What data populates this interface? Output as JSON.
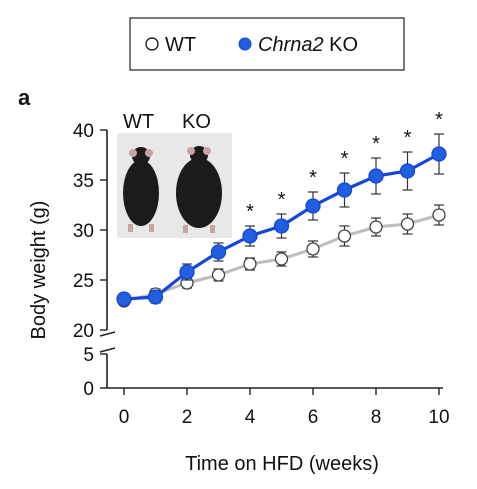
{
  "panel_label": "a",
  "legend": {
    "items": [
      {
        "label": "WT",
        "italic": false,
        "marker": "open-circle"
      },
      {
        "label": "Chrna2",
        "label_suffix": " KO",
        "italic": true,
        "marker": "blue-filled-circle"
      }
    ]
  },
  "inset": {
    "label_left": "WT",
    "label_right": "KO"
  },
  "colors": {
    "ko_line": "#1745d8",
    "ko_fill": "#1f5fe0",
    "wt_line": "#bdbdbd",
    "axis": "#222222"
  },
  "chart_data": {
    "type": "line",
    "xlabel": "Time on HFD (weeks)",
    "ylabel": "Body weight (g)",
    "xlim": [
      0,
      10
    ],
    "ylim_upper": [
      20,
      40
    ],
    "ylim_lower": [
      0,
      5
    ],
    "broken_y_axis": true,
    "x_ticks": [
      "0",
      "2",
      "4",
      "6",
      "8",
      "10"
    ],
    "y_ticks_upper": [
      "20",
      "25",
      "30",
      "35",
      "40"
    ],
    "y_ticks_lower": [
      "0",
      "5"
    ],
    "x": [
      0,
      1,
      2,
      3,
      4,
      5,
      6,
      7,
      8,
      9,
      10
    ],
    "series": [
      {
        "name": "WT",
        "values": [
          22.9,
          23.6,
          24.7,
          25.5,
          26.6,
          27.1,
          28.1,
          29.4,
          30.3,
          30.6,
          31.5
        ],
        "errors": [
          0.4,
          0.5,
          0.5,
          0.6,
          0.6,
          0.7,
          0.8,
          1.0,
          0.9,
          1.0,
          1.0
        ]
      },
      {
        "name": "Chrna2 KO",
        "values": [
          23.1,
          23.3,
          25.8,
          27.8,
          29.4,
          30.4,
          32.4,
          34.0,
          35.4,
          35.9,
          37.6
        ],
        "errors": [
          0.5,
          0.6,
          0.8,
          0.9,
          1.0,
          1.2,
          1.4,
          1.7,
          1.8,
          1.9,
          2.0
        ]
      }
    ],
    "significance_marks": {
      "symbol": "*",
      "x": [
        4,
        5,
        6,
        7,
        8,
        9,
        10
      ]
    },
    "grid": false
  }
}
